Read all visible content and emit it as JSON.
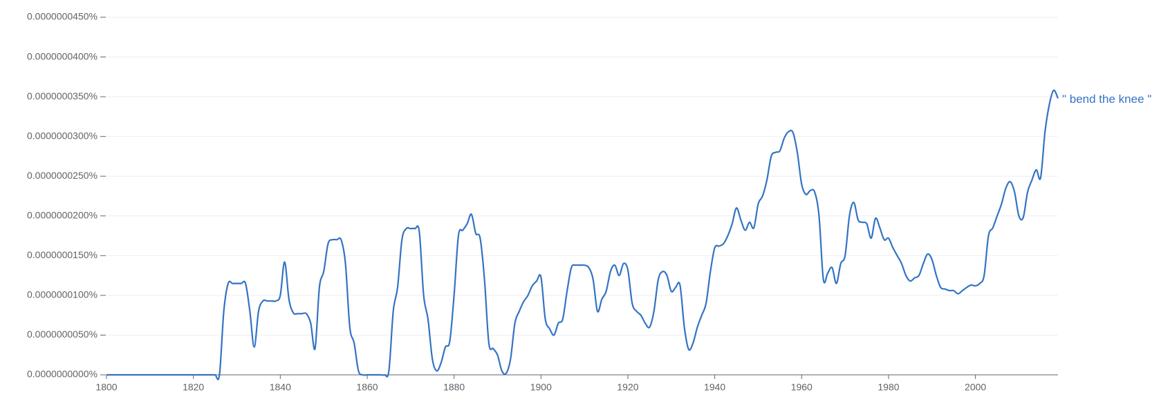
{
  "chart_data": {
    "type": "line",
    "x": [
      1800,
      1801,
      1802,
      1803,
      1804,
      1805,
      1806,
      1807,
      1808,
      1809,
      1810,
      1811,
      1812,
      1813,
      1814,
      1815,
      1816,
      1817,
      1818,
      1819,
      1820,
      1821,
      1822,
      1823,
      1824,
      1825,
      1826,
      1827,
      1828,
      1829,
      1830,
      1831,
      1832,
      1833,
      1834,
      1835,
      1836,
      1837,
      1838,
      1839,
      1840,
      1841,
      1842,
      1843,
      1844,
      1845,
      1846,
      1847,
      1848,
      1849,
      1850,
      1851,
      1852,
      1853,
      1854,
      1855,
      1856,
      1857,
      1858,
      1859,
      1860,
      1861,
      1862,
      1863,
      1864,
      1865,
      1866,
      1867,
      1868,
      1869,
      1870,
      1871,
      1872,
      1873,
      1874,
      1875,
      1876,
      1877,
      1878,
      1879,
      1880,
      1881,
      1882,
      1883,
      1884,
      1885,
      1886,
      1887,
      1888,
      1889,
      1890,
      1891,
      1892,
      1893,
      1894,
      1895,
      1896,
      1897,
      1898,
      1899,
      1900,
      1901,
      1902,
      1903,
      1904,
      1905,
      1906,
      1907,
      1908,
      1909,
      1910,
      1911,
      1912,
      1913,
      1914,
      1915,
      1916,
      1917,
      1918,
      1919,
      1920,
      1921,
      1922,
      1923,
      1924,
      1925,
      1926,
      1927,
      1928,
      1929,
      1930,
      1931,
      1932,
      1933,
      1934,
      1935,
      1936,
      1937,
      1938,
      1939,
      1940,
      1941,
      1942,
      1943,
      1944,
      1945,
      1946,
      1947,
      1948,
      1949,
      1950,
      1951,
      1952,
      1953,
      1954,
      1955,
      1956,
      1957,
      1958,
      1959,
      1960,
      1961,
      1962,
      1963,
      1964,
      1965,
      1966,
      1967,
      1968,
      1969,
      1970,
      1971,
      1972,
      1973,
      1974,
      1975,
      1976,
      1977,
      1978,
      1979,
      1980,
      1981,
      1982,
      1983,
      1984,
      1985,
      1986,
      1987,
      1988,
      1989,
      1990,
      1991,
      1992,
      1993,
      1994,
      1995,
      1996,
      1997,
      1998,
      1999,
      2000,
      2001,
      2002,
      2003,
      2004,
      2005,
      2006,
      2007,
      2008,
      2009,
      2010,
      2011,
      2012,
      2013,
      2014,
      2015,
      2016,
      2017,
      2018,
      2019
    ],
    "series": [
      {
        "name": "\" bend the knee \"",
        "color": "#3273c4",
        "values": [
          0,
          0,
          0,
          0,
          0,
          0,
          0,
          0,
          0,
          0,
          0,
          0,
          0,
          0,
          0,
          0,
          0,
          0,
          0,
          0,
          0,
          0,
          0,
          0,
          0,
          0,
          0,
          8e-09,
          1.15e-08,
          1.15e-08,
          1.15e-08,
          1.15e-08,
          1.15e-08,
          8e-09,
          3.5e-09,
          8e-09,
          9.3e-09,
          9.3e-09,
          9.3e-09,
          9.3e-09,
          1e-08,
          1.42e-08,
          9.5e-09,
          7.8e-09,
          7.7e-09,
          7.7e-09,
          7.7e-09,
          6.5e-09,
          3.3e-09,
          1.1e-08,
          1.3e-08,
          1.65e-08,
          1.7e-08,
          1.7e-08,
          1.7e-08,
          1.4e-08,
          6e-09,
          4e-09,
          5e-10,
          0,
          0,
          0,
          0,
          0,
          0,
          5e-10,
          8e-09,
          1.1e-08,
          1.7e-08,
          1.84e-08,
          1.84e-08,
          1.84e-08,
          1.8e-08,
          1e-08,
          7e-09,
          2e-09,
          5e-10,
          1.5e-09,
          3.5e-09,
          4.2e-09,
          1e-08,
          1.75e-08,
          1.82e-08,
          1.9e-08,
          2.02e-08,
          1.78e-08,
          1.72e-08,
          1.2e-08,
          4e-09,
          3.3e-09,
          2.5e-09,
          5e-10,
          2e-10,
          2e-09,
          6.5e-09,
          8e-09,
          9.2e-09,
          1e-08,
          1.12e-08,
          1.18e-08,
          1.23e-08,
          7e-09,
          5.8e-09,
          5e-09,
          6.5e-09,
          7e-09,
          1.05e-08,
          1.35e-08,
          1.38e-08,
          1.38e-08,
          1.38e-08,
          1.35e-08,
          1.2e-08,
          8e-09,
          9.5e-09,
          1.05e-08,
          1.3e-08,
          1.38e-08,
          1.25e-08,
          1.4e-08,
          1.32e-08,
          9e-09,
          8e-09,
          7.5e-09,
          6.5e-09,
          6e-09,
          8e-09,
          1.2e-08,
          1.3e-08,
          1.25e-08,
          1.05e-08,
          1.1e-08,
          1.13e-08,
          6e-09,
          3.2e-09,
          4e-09,
          6e-09,
          7.5e-09,
          9e-09,
          1.3e-08,
          1.6e-08,
          1.62e-08,
          1.65e-08,
          1.75e-08,
          1.9e-08,
          2.1e-08,
          1.95e-08,
          1.82e-08,
          1.92e-08,
          1.85e-08,
          2.15e-08,
          2.25e-08,
          2.45e-08,
          2.75e-08,
          2.8e-08,
          2.82e-08,
          2.98e-08,
          3.06e-08,
          3.05e-08,
          2.8e-08,
          2.4e-08,
          2.27e-08,
          2.32e-08,
          2.3e-08,
          2e-08,
          1.2e-08,
          1.28e-08,
          1.35e-08,
          1.15e-08,
          1.4e-08,
          1.5e-08,
          2e-08,
          2.17e-08,
          1.95e-08,
          1.92e-08,
          1.9e-08,
          1.72e-08,
          1.97e-08,
          1.85e-08,
          1.7e-08,
          1.72e-08,
          1.6e-08,
          1.5e-08,
          1.4e-08,
          1.25e-08,
          1.18e-08,
          1.22e-08,
          1.25e-08,
          1.4e-08,
          1.52e-08,
          1.45e-08,
          1.25e-08,
          1.1e-08,
          1.08e-08,
          1.06e-08,
          1.06e-08,
          1.02e-08,
          1.06e-08,
          1.1e-08,
          1.13e-08,
          1.12e-08,
          1.15e-08,
          1.25e-08,
          1.75e-08,
          1.85e-08,
          2e-08,
          2.15e-08,
          2.35e-08,
          2.43e-08,
          2.3e-08,
          2e-08,
          1.98e-08,
          2.3e-08,
          2.45e-08,
          2.58e-08,
          2.48e-08,
          3.05e-08,
          3.4e-08,
          3.58e-08,
          3.48e-08
        ]
      }
    ],
    "xlim": [
      1800,
      2019
    ],
    "xticks": [
      1800,
      1820,
      1840,
      1860,
      1880,
      1900,
      1920,
      1940,
      1960,
      1980,
      2000
    ],
    "ylim": [
      0,
      4.5e-08
    ],
    "yticks": [
      {
        "value": 0,
        "label": "0.0000000000%"
      },
      {
        "value": 5e-09,
        "label": "0.0000000050%"
      },
      {
        "value": 1e-08,
        "label": "0.0000000100%"
      },
      {
        "value": 1.5e-08,
        "label": "0.0000000150%"
      },
      {
        "value": 2e-08,
        "label": "0.0000000200%"
      },
      {
        "value": 2.5e-08,
        "label": "0.0000000250%"
      },
      {
        "value": 3e-08,
        "label": "0.0000000300%"
      },
      {
        "value": 3.5e-08,
        "label": "0.0000000350%"
      },
      {
        "value": 4e-08,
        "label": "0.0000000400%"
      },
      {
        "value": 4.5e-08,
        "label": "0.0000000450%"
      }
    ],
    "grid": true
  }
}
